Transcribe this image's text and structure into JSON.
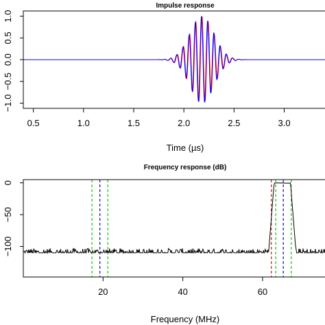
{
  "chart_data": [
    {
      "type": "line",
      "title": "Impulse response",
      "xlabel": "Time (µs)",
      "ylabel": "",
      "xlim": [
        0.4,
        3.42
      ],
      "ylim": [
        -1.12,
        1.12
      ],
      "xticks": [
        0.5,
        1.0,
        1.5,
        2.0,
        2.5,
        3.0
      ],
      "xtick_labels": [
        "0.5",
        "1.0",
        "1.5",
        "2.0",
        "2.5",
        "3.0"
      ],
      "yticks": [
        -1.0,
        -0.5,
        0.0,
        0.5,
        1.0
      ],
      "ytick_labels": [
        "−1.0",
        "−0.5",
        "0.0",
        "0.5",
        "1.0"
      ],
      "series": [
        {
          "color": "#ff0000",
          "envelope_peak": 1.0,
          "center_us": 2.18,
          "carrier_mhz": 64.6,
          "phase": 0.0
        },
        {
          "color": "#0000ff",
          "envelope_peak": 1.0,
          "center_us": 2.18,
          "carrier_mhz": 64.6,
          "phase": 0.45
        }
      ],
      "grid": false
    },
    {
      "type": "line",
      "title": "Frequency response (dB)",
      "xlabel": "Frequency (MHz)",
      "ylabel": "",
      "xlim": [
        0,
        76
      ],
      "ylim": [
        -148,
        5
      ],
      "xticks": [
        20,
        40,
        60
      ],
      "xtick_labels": [
        "20",
        "40",
        "60"
      ],
      "yticks": [
        -100,
        -50,
        0
      ],
      "ytick_labels": [
        "−100",
        "−50",
        "0"
      ],
      "series": [
        {
          "color": "#000000",
          "noise_floor_db": -110,
          "passband_db": 0,
          "passband_mhz": [
            62.9,
            67.0
          ]
        }
      ],
      "vlines": [
        {
          "x": 17.2,
          "color": "#00cc00"
        },
        {
          "x": 19.2,
          "color": "#0000ff"
        },
        {
          "x": 21.2,
          "color": "#00cc00"
        },
        {
          "x": 62.2,
          "color": "#ff0000"
        },
        {
          "x": 63.3,
          "color": "#00cc00"
        },
        {
          "x": 65.2,
          "color": "#0000ff"
        },
        {
          "x": 67.2,
          "color": "#00cc00"
        }
      ],
      "grid": false
    }
  ]
}
